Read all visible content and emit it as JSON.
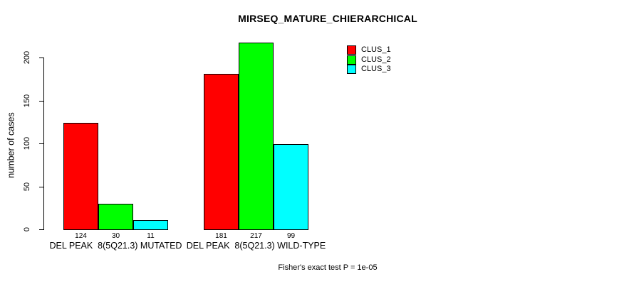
{
  "chart_data": {
    "type": "bar",
    "title": "MIRSEQ_MATURE_CHIERARCHICAL",
    "ylabel": "number of cases",
    "xlabel": "",
    "annotation": "Fisher's exact test P = 1e-05",
    "categories": [
      "DEL PEAK  8(5Q21.3) MUTATED",
      "DEL PEAK  8(5Q21.3) WILD-TYPE"
    ],
    "series": [
      {
        "name": "CLUS_1",
        "color": "#ff0000",
        "values": [
          124,
          181
        ]
      },
      {
        "name": "CLUS_2",
        "color": "#00ff00",
        "values": [
          30,
          217
        ]
      },
      {
        "name": "CLUS_3",
        "color": "#00ffff",
        "values": [
          11,
          99
        ]
      }
    ],
    "y_ticks": [
      0,
      50,
      100,
      150,
      200
    ],
    "ylim": [
      0,
      220
    ],
    "grid": false,
    "legend_position": "top-right",
    "bar_value_labels": true,
    "axis_color": "#000000",
    "background_color": "#ffffff"
  }
}
